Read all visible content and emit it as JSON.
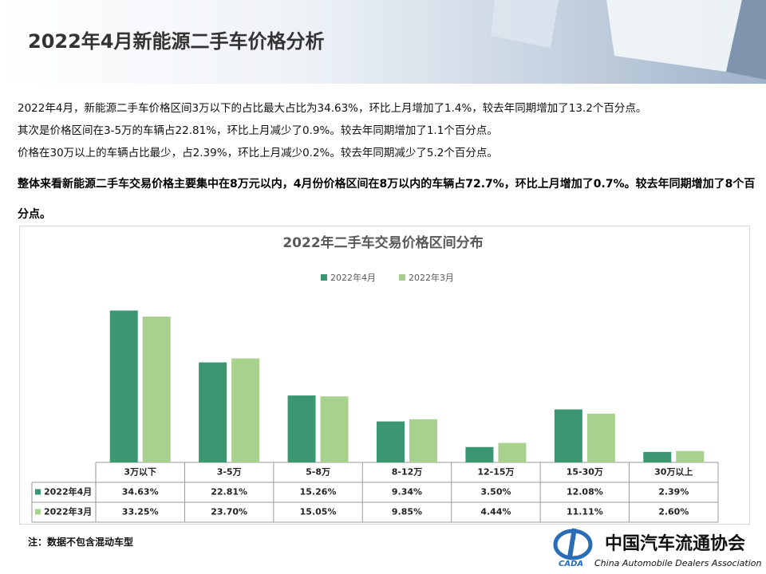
{
  "header": {
    "title": "2022年4月新能源二手车价格分析"
  },
  "paragraphs": [
    "2022年4月，新能源二手车价格区间3万以下的占比最大占比为34.63%，环比上月增加了1.4%，较去年同期增加了13.2个百分点。",
    "其次是价格区间在3-5万的车辆占22.81%，环比上月减少了0.9%。较去年同期增加了1.1个百分点。",
    "价格在30万以上的车辆占比最少，占2.39%，环比上月减少0.2%。较去年同期减少了5.2个百分点。",
    "整体来看新能源二手车交易价格主要集中在8万元以内，4月份价格区间在8万以内的车辆占72.7%，环比上月增加了0.7%。较去年同期增加了8个百分点。"
  ],
  "chart_data": {
    "type": "bar",
    "title": "2022年二手车交易价格区间分布",
    "categories": [
      "3万以下",
      "3-5万",
      "5-8万",
      "8-12万",
      "12-15万",
      "15-30万",
      "30万以上"
    ],
    "series": [
      {
        "name": "2022年4月",
        "color": "#3a9771",
        "values": [
          34.63,
          22.81,
          15.26,
          9.34,
          3.5,
          12.08,
          2.39
        ],
        "value_labels": [
          "34.63%",
          "22.81%",
          "15.26%",
          "9.34%",
          "3.50%",
          "12.08%",
          "2.39%"
        ]
      },
      {
        "name": "2022年3月",
        "color": "#a9d18e",
        "values": [
          33.25,
          23.7,
          15.05,
          9.85,
          4.44,
          11.11,
          2.6
        ],
        "value_labels": [
          "33.25%",
          "23.70%",
          "15.05%",
          "9.85%",
          "4.44%",
          "11.11%",
          "2.60%"
        ]
      }
    ]
  },
  "footnote": "注：数据不包含混动车型",
  "logo": {
    "abbr": "CADA",
    "name": "中国汽车流通协会",
    "english": "China Automobile Dealers Association"
  }
}
